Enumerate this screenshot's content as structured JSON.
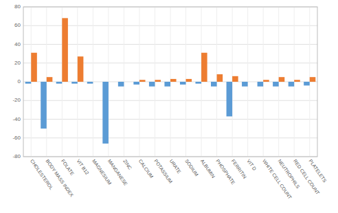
{
  "chart_data": {
    "type": "bar",
    "categories": [
      "CHOLESTEROL",
      "BODY MASS INDEX",
      "FOLATE",
      "VIT B12",
      "MAGNESIUM",
      "MANGANESE",
      "ZINC",
      "CALCIUM",
      "POTASSIUM",
      "URATE",
      "SODIUM",
      "ALBUMIN",
      "PHOSPHATE",
      "FERRITIN",
      "VIT D",
      "WHITE CELL COUNT",
      "NEUTROPHILS",
      "RED CELL COUNT",
      "PLATELETS"
    ],
    "series": [
      {
        "color": "#5B9BD5",
        "values": [
          -2,
          -50,
          -2,
          -2,
          -2,
          -66,
          -5,
          -3,
          -5,
          -5,
          -3,
          -2,
          -5,
          -37,
          -5,
          -5,
          -5,
          -5,
          -4
        ]
      },
      {
        "color": "#ED7D31",
        "values": [
          31,
          5,
          68,
          27,
          0,
          0,
          0,
          2,
          2,
          3,
          3,
          31,
          8,
          6,
          0,
          2,
          5,
          2,
          5
        ]
      }
    ],
    "ylim": [
      -80,
      80
    ],
    "yticks": [
      -80,
      -60,
      -40,
      -20,
      0,
      20,
      40,
      60,
      80
    ],
    "grid": true
  }
}
